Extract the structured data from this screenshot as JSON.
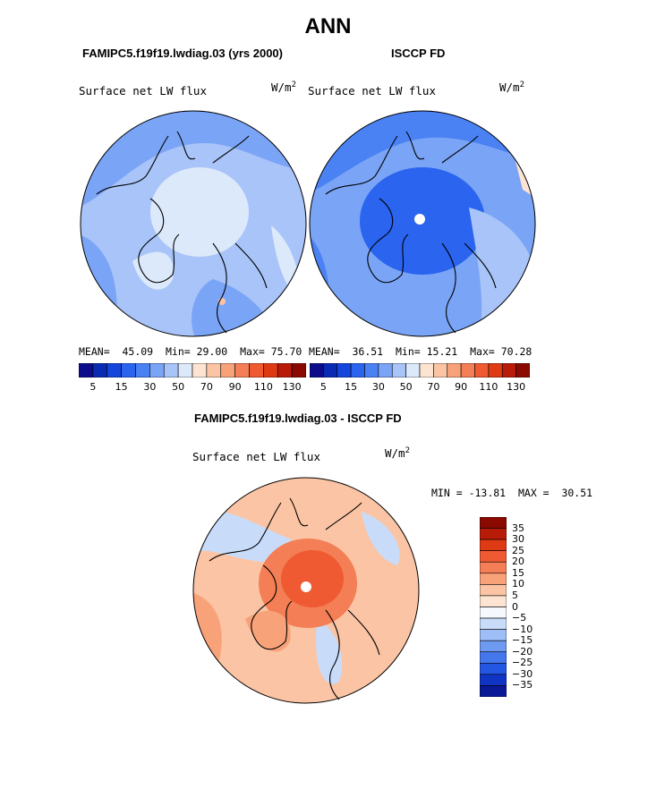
{
  "title": "ANN",
  "panels": [
    {
      "case": "FAMIPC5.f19f19.lwdiag.03 (yrs 2000)",
      "variable": "Surface net LW flux",
      "units_base": "W/m",
      "units_exp": "2",
      "mean_label": "MEAN=",
      "mean": "45.09",
      "min_label": "Min=",
      "min": "29.00",
      "max_label": "Max=",
      "max": "75.70"
    },
    {
      "case": "ISCCP FD",
      "variable": "Surface net LW flux",
      "units_base": "W/m",
      "units_exp": "2",
      "mean_label": "MEAN=",
      "mean": "36.51",
      "min_label": "Min=",
      "min": "15.21",
      "max_label": "Max=",
      "max": "70.28"
    }
  ],
  "diff": {
    "title": "FAMIPC5.f19f19.lwdiag.03 - ISCCP FD",
    "variable": "Surface net LW flux",
    "units_base": "W/m",
    "units_exp": "2",
    "min_label": "MIN =",
    "min": "-13.81",
    "max_label": "MAX =",
    "max": "30.51"
  },
  "chart_data": [
    {
      "type": "heatmap",
      "projection": "polar stereographic (north pole)",
      "title": "FAMIPC5.f19f19.lwdiag.03 (yrs 2000)",
      "variable": "Surface net LW flux",
      "units": "W/m^2",
      "mean": 45.09,
      "min": 29.0,
      "max": 75.7,
      "colorbar_ticks": [
        "5",
        "15",
        "30",
        "50",
        "70",
        "90",
        "110",
        "130"
      ],
      "levels": [
        0,
        5,
        10,
        15,
        20,
        30,
        40,
        50,
        60,
        70,
        80,
        90,
        100,
        110,
        120,
        130
      ]
    },
    {
      "type": "heatmap",
      "projection": "polar stereographic (north pole)",
      "title": "ISCCP FD",
      "variable": "Surface net LW flux",
      "units": "W/m^2",
      "mean": 36.51,
      "min": 15.21,
      "max": 70.28,
      "colorbar_ticks": [
        "5",
        "15",
        "30",
        "50",
        "70",
        "90",
        "110",
        "130"
      ],
      "levels": [
        0,
        5,
        10,
        15,
        20,
        30,
        40,
        50,
        60,
        70,
        80,
        90,
        100,
        110,
        120,
        130
      ]
    },
    {
      "type": "heatmap",
      "projection": "polar stereographic (north pole)",
      "title": "FAMIPC5.f19f19.lwdiag.03 - ISCCP FD",
      "variable": "Surface net LW flux",
      "units": "W/m^2",
      "min": -13.81,
      "max": 30.51,
      "colorbar_ticks": [
        "35",
        "30",
        "25",
        "20",
        "15",
        "10",
        "5",
        "0",
        "-5",
        "-10",
        "-15",
        "-20",
        "-25",
        "-30",
        "-35"
      ],
      "colorbar_orientation": "vertical"
    }
  ],
  "colors": {
    "seq_scale": [
      "#0d0d8c",
      "#0a2ab4",
      "#1446dc",
      "#2a64ef",
      "#4a82f4",
      "#7aa4f6",
      "#a8c4f8",
      "#dce9fb",
      "#fde4d2",
      "#fbc4a4",
      "#f8a27a",
      "#f47e55",
      "#ef5a32",
      "#de3a14",
      "#b81c08",
      "#8a0a02"
    ],
    "diff_scale": [
      "#8a0a02",
      "#b81c08",
      "#de3a14",
      "#ef5a32",
      "#f47e55",
      "#f8a27a",
      "#fbc4a4",
      "#fde4d2",
      "#f5f8fc",
      "#c8dcfa",
      "#9dbef6",
      "#6e9af1",
      "#4577ec",
      "#2356e3",
      "#1034c4",
      "#0a1a96"
    ]
  }
}
